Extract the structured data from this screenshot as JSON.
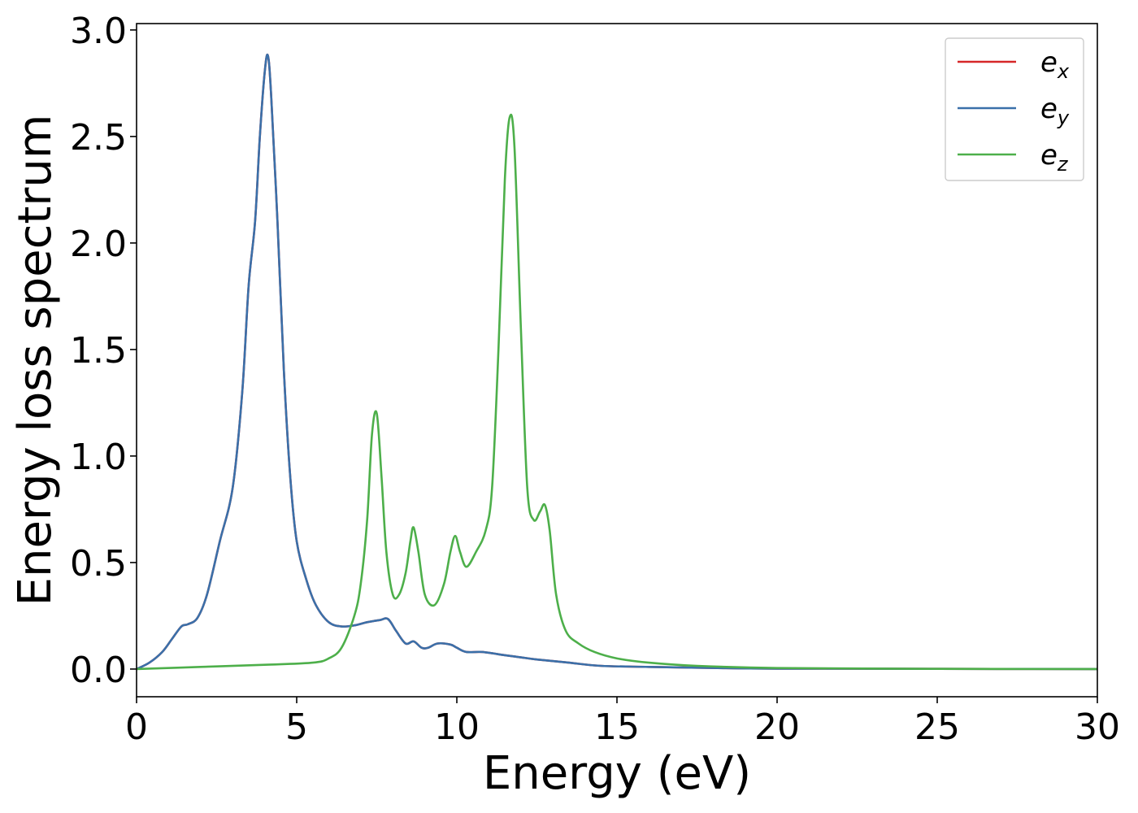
{
  "chart_data": {
    "type": "line",
    "xlabel": "Energy (eV)",
    "ylabel": "Energy loss spectrum",
    "xlim": [
      0,
      30
    ],
    "ylim": [
      -0.13,
      3.03
    ],
    "xticks": [
      0,
      5,
      10,
      15,
      20,
      25,
      30
    ],
    "xtick_labels": [
      "0",
      "5",
      "10",
      "15",
      "20",
      "25",
      "30"
    ],
    "yticks": [
      0.0,
      0.5,
      1.0,
      1.5,
      2.0,
      2.5,
      3.0
    ],
    "ytick_labels": [
      "0.0",
      "0.5",
      "1.0",
      "1.5",
      "2.0",
      "2.5",
      "3.0"
    ],
    "grid": false,
    "legend_position": "top-right",
    "series": [
      {
        "name": "e_x",
        "label_base": "e",
        "label_sub": "x",
        "color": "#d62728",
        "x": [
          0,
          0.4,
          0.8,
          1.1,
          1.4,
          1.6,
          1.9,
          2.2,
          2.6,
          3.0,
          3.3,
          3.5,
          3.7,
          3.85,
          4.0,
          4.1,
          4.2,
          4.4,
          4.6,
          4.8,
          5.0,
          5.3,
          5.6,
          6.0,
          6.4,
          6.8,
          7.2,
          7.6,
          7.85,
          8.1,
          8.4,
          8.65,
          8.9,
          9.1,
          9.4,
          9.8,
          10.0,
          10.3,
          10.8,
          11.5,
          12.0,
          12.5,
          13.5,
          14.5,
          16.0,
          18.0,
          20.0,
          25.0,
          30.0
        ],
        "y": [
          0.0,
          0.03,
          0.08,
          0.14,
          0.2,
          0.21,
          0.24,
          0.35,
          0.6,
          0.85,
          1.3,
          1.8,
          2.1,
          2.5,
          2.8,
          2.88,
          2.7,
          2.1,
          1.4,
          0.9,
          0.6,
          0.42,
          0.3,
          0.22,
          0.2,
          0.205,
          0.22,
          0.23,
          0.235,
          0.18,
          0.12,
          0.13,
          0.1,
          0.1,
          0.12,
          0.115,
          0.1,
          0.08,
          0.08,
          0.065,
          0.055,
          0.045,
          0.03,
          0.015,
          0.01,
          0.005,
          0.002,
          0.001,
          0.0
        ]
      },
      {
        "name": "e_y",
        "label_base": "e",
        "label_sub": "y",
        "color": "#3a70a9",
        "x": [
          0,
          0.4,
          0.8,
          1.1,
          1.4,
          1.6,
          1.9,
          2.2,
          2.6,
          3.0,
          3.3,
          3.5,
          3.7,
          3.85,
          4.0,
          4.1,
          4.2,
          4.4,
          4.6,
          4.8,
          5.0,
          5.3,
          5.6,
          6.0,
          6.4,
          6.8,
          7.2,
          7.6,
          7.85,
          8.1,
          8.4,
          8.65,
          8.9,
          9.1,
          9.4,
          9.8,
          10.0,
          10.3,
          10.8,
          11.5,
          12.0,
          12.5,
          13.5,
          14.5,
          16.0,
          18.0,
          20.0,
          25.0,
          30.0
        ],
        "y": [
          0.0,
          0.03,
          0.08,
          0.14,
          0.2,
          0.21,
          0.24,
          0.35,
          0.6,
          0.85,
          1.3,
          1.8,
          2.1,
          2.5,
          2.8,
          2.88,
          2.7,
          2.1,
          1.4,
          0.9,
          0.6,
          0.42,
          0.3,
          0.22,
          0.2,
          0.205,
          0.22,
          0.23,
          0.235,
          0.18,
          0.12,
          0.13,
          0.1,
          0.1,
          0.12,
          0.115,
          0.1,
          0.08,
          0.08,
          0.065,
          0.055,
          0.045,
          0.03,
          0.015,
          0.01,
          0.005,
          0.002,
          0.001,
          0.0
        ]
      },
      {
        "name": "e_z",
        "label_base": "e",
        "label_sub": "z",
        "color": "#4daf4a",
        "x": [
          0,
          2.0,
          4.0,
          5.5,
          6.0,
          6.4,
          6.8,
          7.0,
          7.2,
          7.35,
          7.5,
          7.65,
          7.8,
          8.0,
          8.2,
          8.4,
          8.55,
          8.65,
          8.8,
          9.0,
          9.3,
          9.6,
          9.8,
          9.95,
          10.1,
          10.3,
          10.6,
          10.9,
          11.1,
          11.3,
          11.5,
          11.65,
          11.8,
          12.0,
          12.2,
          12.4,
          12.6,
          12.75,
          12.9,
          13.1,
          13.4,
          13.8,
          14.3,
          15.0,
          16.0,
          17.5,
          20.0,
          25.0,
          30.0
        ],
        "y": [
          0.0,
          0.01,
          0.02,
          0.03,
          0.05,
          0.1,
          0.25,
          0.4,
          0.7,
          1.1,
          1.2,
          0.9,
          0.55,
          0.35,
          0.35,
          0.45,
          0.6,
          0.665,
          0.55,
          0.35,
          0.3,
          0.4,
          0.55,
          0.625,
          0.55,
          0.48,
          0.55,
          0.65,
          0.85,
          1.5,
          2.3,
          2.59,
          2.45,
          1.6,
          0.85,
          0.7,
          0.74,
          0.77,
          0.65,
          0.35,
          0.18,
          0.12,
          0.08,
          0.05,
          0.03,
          0.015,
          0.005,
          0.001,
          0.0
        ]
      }
    ]
  }
}
